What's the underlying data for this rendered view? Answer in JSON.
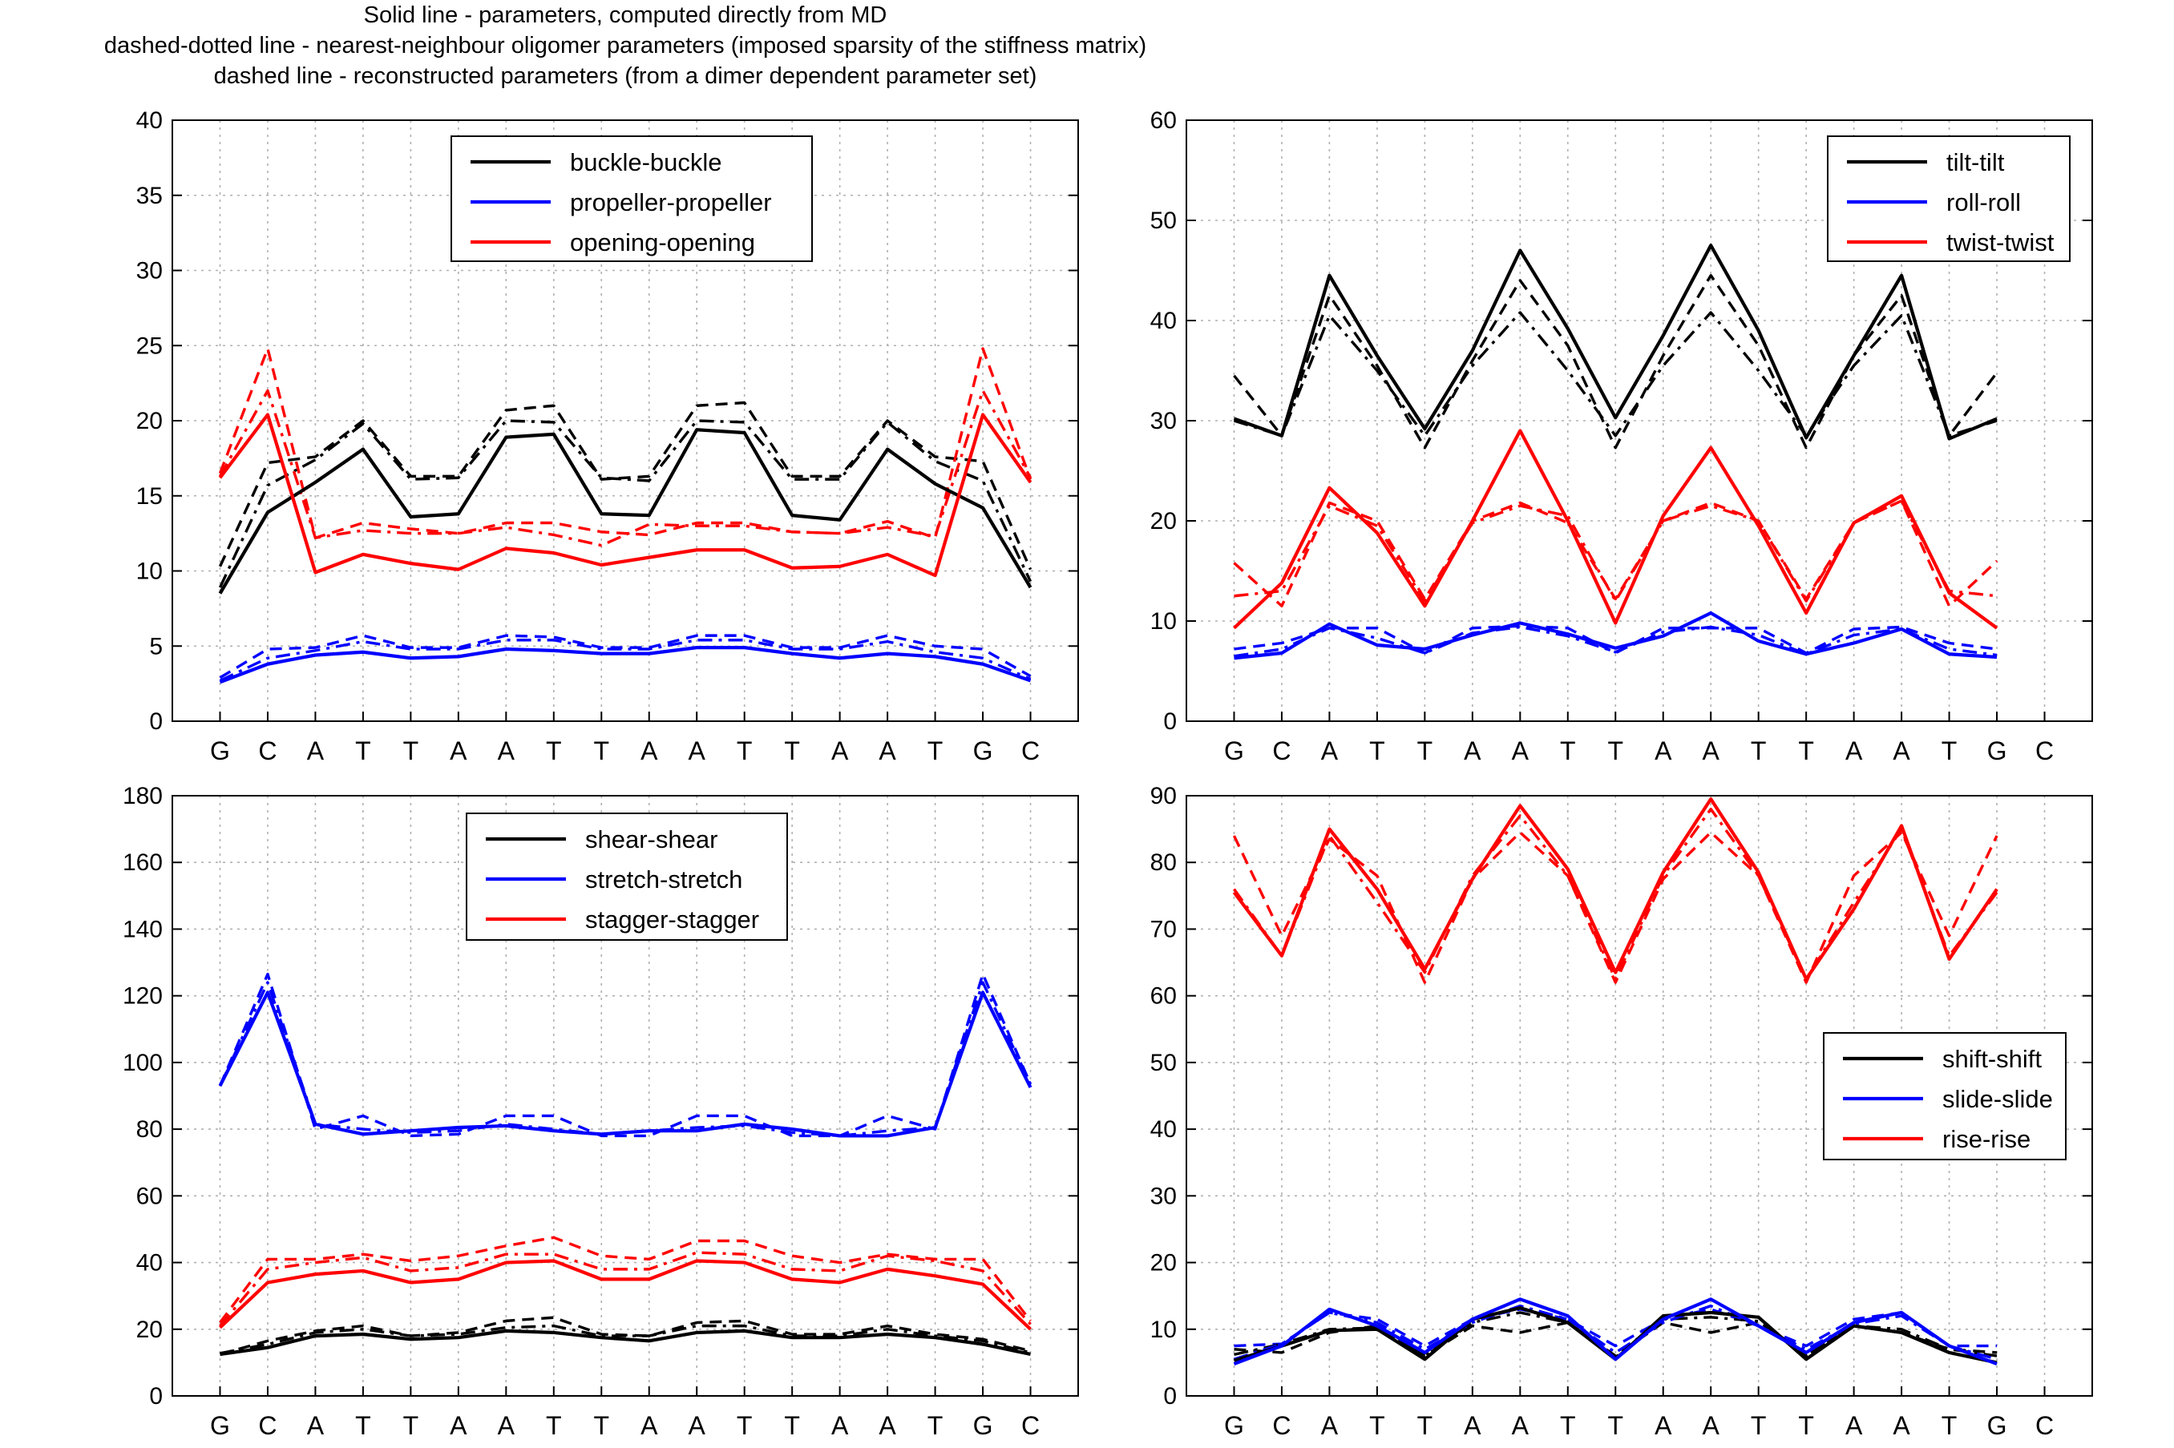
{
  "header": {
    "lines": [
      "Solid line - parameters, computed directly from MD",
      "dashed-dotted line - nearest-neighbour oligomer parameters (imposed sparsity of the stiffness matrix)",
      "dashed line - reconstructed parameters (from a dimer dependent parameter set)"
    ]
  },
  "colors": {
    "black": "#000000",
    "blue": "#0000ff",
    "red": "#ff0000",
    "grid": "#b0b0b0"
  },
  "chart_data": [
    {
      "type": "line",
      "position": "top-left",
      "title": "",
      "xlabel": "",
      "ylabel": "",
      "categories": [
        "G",
        "C",
        "A",
        "T",
        "T",
        "A",
        "A",
        "T",
        "T",
        "A",
        "A",
        "T",
        "T",
        "A",
        "A",
        "T",
        "G",
        "C"
      ],
      "ylim": [
        0,
        40
      ],
      "yticks": [
        0,
        5,
        10,
        15,
        20,
        25,
        30,
        35,
        40
      ],
      "grid": true,
      "legend_placement": "top-center",
      "series": [
        {
          "name": "buckle-buckle",
          "color": "#000000",
          "solid": [
            8.5,
            13.9,
            15.9,
            18.1,
            13.6,
            13.8,
            18.9,
            19.1,
            13.8,
            13.7,
            19.4,
            19.2,
            13.7,
            13.4,
            18.1,
            15.8,
            14.2,
            8.9
          ],
          "dashdot": [
            8.9,
            15.7,
            17.4,
            19.8,
            16.1,
            16.2,
            20.0,
            19.9,
            16.2,
            16.0,
            20.0,
            19.9,
            16.1,
            16.1,
            19.9,
            17.3,
            16.0,
            9.3
          ],
          "dashed": [
            10.3,
            17.2,
            17.6,
            20.0,
            16.3,
            16.3,
            20.7,
            21.0,
            16.1,
            16.3,
            21.0,
            21.2,
            16.3,
            16.3,
            20.0,
            17.6,
            17.3,
            10.1
          ]
        },
        {
          "name": "propeller-propeller",
          "color": "#0000ff",
          "solid": [
            2.6,
            3.8,
            4.4,
            4.6,
            4.2,
            4.3,
            4.8,
            4.7,
            4.5,
            4.5,
            4.9,
            4.9,
            4.5,
            4.2,
            4.5,
            4.3,
            3.8,
            2.7
          ],
          "dashdot": [
            2.7,
            4.2,
            4.7,
            5.3,
            4.8,
            4.8,
            5.4,
            5.4,
            4.8,
            4.8,
            5.4,
            5.4,
            4.8,
            4.8,
            5.3,
            4.6,
            4.2,
            2.8
          ],
          "dashed": [
            2.9,
            4.8,
            4.9,
            5.7,
            4.9,
            4.9,
            5.7,
            5.6,
            4.9,
            4.9,
            5.7,
            5.7,
            4.9,
            4.9,
            5.7,
            5.0,
            4.8,
            3.0
          ]
        },
        {
          "name": "opening-opening",
          "color": "#ff0000",
          "solid": [
            16.2,
            20.4,
            9.9,
            11.1,
            10.5,
            10.1,
            11.5,
            11.2,
            10.4,
            10.9,
            11.4,
            11.4,
            10.2,
            10.3,
            11.1,
            9.7,
            20.4,
            15.9
          ],
          "dashdot": [
            16.3,
            22.0,
            12.2,
            12.7,
            12.5,
            12.5,
            12.9,
            12.4,
            11.7,
            13.1,
            13.0,
            13.0,
            12.6,
            12.5,
            12.9,
            12.3,
            22.0,
            16.2
          ],
          "dashed": [
            16.5,
            24.8,
            12.2,
            13.2,
            12.8,
            12.5,
            13.2,
            13.2,
            12.6,
            12.4,
            13.2,
            13.2,
            12.6,
            12.5,
            13.3,
            12.2,
            24.8,
            16.1
          ]
        }
      ]
    },
    {
      "type": "line",
      "position": "top-right",
      "title": "",
      "xlabel": "",
      "ylabel": "",
      "categories": [
        "G",
        "C",
        "A",
        "T",
        "T",
        "A",
        "A",
        "T",
        "T",
        "A",
        "A",
        "T",
        "T",
        "A",
        "A",
        "T",
        "G",
        "C"
      ],
      "ylim": [
        0,
        60
      ],
      "yticks": [
        0,
        10,
        20,
        30,
        40,
        50,
        60
      ],
      "grid": true,
      "legend_placement": "top-right",
      "series": [
        {
          "name": "tilt-tilt",
          "color": "#000000",
          "solid": [
            30.2,
            28.5,
            44.5,
            36.5,
            29.2,
            37.0,
            47.0,
            39.2,
            30.3,
            38.5,
            47.5,
            39.0,
            28.3,
            36.5,
            44.5,
            28.2,
            30.2
          ],
          "dashdot": [
            30.0,
            28.5,
            40.5,
            35.0,
            28.5,
            35.5,
            40.8,
            35.0,
            28.5,
            35.5,
            40.8,
            35.0,
            28.5,
            35.5,
            40.5,
            28.5,
            30.0
          ],
          "dashed": [
            34.5,
            28.5,
            42.5,
            35.5,
            27.3,
            36.0,
            44.0,
            37.5,
            27.3,
            36.5,
            44.5,
            37.5,
            27.3,
            36.5,
            42.5,
            28.5,
            34.8
          ]
        },
        {
          "name": "roll-roll",
          "color": "#0000ff",
          "solid": [
            6.3,
            6.8,
            9.7,
            7.6,
            7.2,
            8.6,
            9.8,
            8.7,
            7.3,
            8.5,
            10.8,
            8.0,
            6.7,
            7.8,
            9.2,
            6.7,
            6.4
          ],
          "dashdot": [
            6.5,
            7.2,
            9.3,
            8.3,
            6.8,
            8.8,
            9.4,
            8.5,
            6.9,
            8.9,
            9.4,
            8.6,
            6.7,
            8.6,
            9.2,
            7.2,
            6.6
          ],
          "dashed": [
            7.2,
            7.8,
            9.3,
            9.3,
            6.8,
            9.3,
            9.5,
            9.3,
            6.8,
            9.3,
            9.3,
            9.3,
            6.8,
            9.2,
            9.4,
            7.8,
            7.2
          ]
        },
        {
          "name": "twist-twist",
          "color": "#ff0000",
          "solid": [
            9.3,
            13.8,
            23.3,
            18.8,
            11.5,
            20.0,
            29.0,
            20.0,
            9.8,
            20.5,
            27.3,
            19.5,
            10.8,
            19.8,
            22.5,
            12.8,
            9.3
          ],
          "dashdot": [
            12.5,
            13.0,
            21.5,
            19.5,
            12.0,
            19.8,
            21.5,
            20.5,
            12.0,
            20.0,
            21.5,
            20.0,
            12.0,
            19.8,
            22.0,
            13.0,
            12.5
          ],
          "dashed": [
            15.8,
            11.5,
            21.8,
            20.0,
            12.2,
            20.0,
            21.8,
            19.8,
            12.2,
            20.0,
            21.8,
            20.0,
            12.2,
            19.8,
            22.0,
            11.5,
            16.0
          ]
        }
      ]
    },
    {
      "type": "line",
      "position": "bottom-left",
      "title": "",
      "xlabel": "",
      "ylabel": "",
      "categories": [
        "G",
        "C",
        "A",
        "T",
        "T",
        "A",
        "A",
        "T",
        "T",
        "A",
        "A",
        "T",
        "T",
        "A",
        "A",
        "T",
        "G",
        "C"
      ],
      "ylim": [
        0,
        180
      ],
      "yticks": [
        0,
        20,
        40,
        60,
        80,
        100,
        120,
        140,
        160,
        180
      ],
      "grid": true,
      "legend_placement": "top-center",
      "series": [
        {
          "name": "shear-shear",
          "color": "#000000",
          "solid": [
            12.5,
            14.5,
            18.0,
            18.5,
            17.0,
            17.5,
            19.5,
            19.0,
            17.5,
            16.5,
            19.0,
            19.5,
            17.5,
            17.5,
            18.5,
            17.5,
            15.5,
            12.5
          ],
          "dashdot": [
            12.8,
            15.5,
            19.0,
            20.0,
            18.0,
            18.5,
            20.5,
            21.0,
            18.0,
            18.0,
            21.0,
            21.0,
            18.0,
            18.0,
            20.0,
            18.0,
            16.5,
            13.0
          ],
          "dashed": [
            12.5,
            16.5,
            19.5,
            21.0,
            18.0,
            19.0,
            22.5,
            23.5,
            18.5,
            18.0,
            22.0,
            22.5,
            18.5,
            18.5,
            21.0,
            18.5,
            17.0,
            13.5
          ]
        },
        {
          "name": "stretch-stretch",
          "color": "#0000ff",
          "solid": [
            93.0,
            121.0,
            81.5,
            78.5,
            79.5,
            80.5,
            81.0,
            79.5,
            78.5,
            79.5,
            79.5,
            81.5,
            80.0,
            78.0,
            78.0,
            80.5,
            121.0,
            92.5
          ],
          "dashdot": [
            93.0,
            124.0,
            81.5,
            80.0,
            79.0,
            79.5,
            81.5,
            80.0,
            78.5,
            79.5,
            80.5,
            81.0,
            79.0,
            78.0,
            79.5,
            80.5,
            124.0,
            93.5
          ],
          "dashed": [
            93.0,
            126.5,
            80.0,
            84.0,
            78.0,
            78.5,
            84.0,
            84.0,
            78.0,
            78.0,
            84.0,
            84.0,
            78.0,
            78.0,
            84.0,
            80.0,
            126.5,
            93.5
          ]
        },
        {
          "name": "stagger-stagger",
          "color": "#ff0000",
          "solid": [
            20.5,
            34.0,
            36.5,
            37.5,
            34.0,
            35.0,
            40.0,
            40.5,
            35.0,
            35.0,
            40.5,
            40.0,
            35.0,
            34.0,
            38.0,
            36.0,
            33.5,
            20.0
          ],
          "dashdot": [
            21.0,
            38.0,
            40.0,
            41.5,
            37.5,
            38.5,
            42.5,
            42.5,
            38.0,
            38.0,
            43.0,
            42.5,
            38.0,
            37.5,
            42.0,
            40.5,
            37.5,
            21.5
          ],
          "dashed": [
            22.0,
            41.0,
            41.0,
            42.5,
            40.5,
            42.0,
            45.0,
            47.5,
            42.0,
            41.0,
            46.5,
            46.5,
            42.0,
            40.0,
            42.5,
            41.0,
            41.0,
            22.5
          ]
        }
      ]
    },
    {
      "type": "line",
      "position": "bottom-right",
      "title": "",
      "xlabel": "",
      "ylabel": "",
      "categories": [
        "G",
        "C",
        "A",
        "T",
        "T",
        "A",
        "A",
        "T",
        "T",
        "A",
        "A",
        "T",
        "T",
        "A",
        "A",
        "T",
        "G",
        "C"
      ],
      "ylim": [
        0,
        90
      ],
      "yticks": [
        0,
        10,
        20,
        30,
        40,
        50,
        60,
        70,
        80,
        90
      ],
      "grid": true,
      "legend_placement": "right",
      "series": [
        {
          "name": "shift-shift",
          "color": "#000000",
          "solid": [
            5.3,
            7.5,
            9.8,
            10.0,
            5.5,
            11.5,
            13.2,
            11.0,
            5.5,
            12.0,
            12.5,
            11.8,
            5.5,
            10.5,
            9.5,
            6.5,
            5.0
          ],
          "dashdot": [
            6.2,
            7.8,
            10.0,
            10.2,
            6.0,
            11.0,
            12.5,
            11.0,
            5.8,
            11.5,
            11.8,
            11.2,
            6.0,
            10.5,
            10.0,
            7.0,
            6.0
          ],
          "dashed": [
            7.0,
            6.5,
            9.5,
            10.5,
            6.0,
            10.5,
            9.5,
            11.0,
            6.0,
            11.0,
            9.5,
            11.0,
            6.0,
            10.5,
            9.5,
            7.0,
            6.5
          ]
        },
        {
          "name": "slide-slide",
          "color": "#0000ff",
          "solid": [
            4.8,
            7.5,
            13.0,
            10.5,
            6.5,
            11.5,
            14.5,
            12.0,
            5.5,
            11.5,
            14.5,
            10.5,
            6.5,
            11.0,
            12.5,
            7.5,
            4.8
          ],
          "dashdot": [
            5.5,
            7.8,
            12.5,
            11.0,
            7.0,
            11.0,
            13.5,
            11.5,
            6.5,
            11.0,
            13.5,
            10.5,
            7.0,
            10.8,
            12.0,
            7.5,
            5.5
          ],
          "dashed": [
            7.5,
            7.8,
            12.5,
            11.5,
            7.5,
            11.5,
            13.0,
            11.5,
            7.5,
            11.5,
            13.0,
            10.5,
            7.5,
            11.5,
            12.5,
            7.5,
            7.5
          ]
        },
        {
          "name": "rise-rise",
          "color": "#ff0000",
          "solid": [
            75.5,
            66.0,
            85.0,
            76.0,
            64.0,
            77.5,
            88.5,
            79.0,
            63.5,
            78.5,
            89.5,
            78.5,
            62.5,
            73.0,
            85.5,
            65.5,
            76.0
          ],
          "dashdot": [
            76.0,
            66.0,
            84.0,
            74.0,
            63.5,
            78.0,
            87.0,
            78.0,
            62.5,
            78.0,
            88.0,
            78.0,
            62.5,
            74.0,
            85.0,
            66.0,
            75.5
          ],
          "dashed": [
            84.0,
            69.0,
            83.5,
            78.0,
            62.0,
            77.5,
            84.5,
            78.0,
            62.0,
            77.5,
            84.5,
            78.0,
            62.0,
            78.0,
            84.5,
            69.0,
            84.0
          ]
        }
      ]
    }
  ]
}
